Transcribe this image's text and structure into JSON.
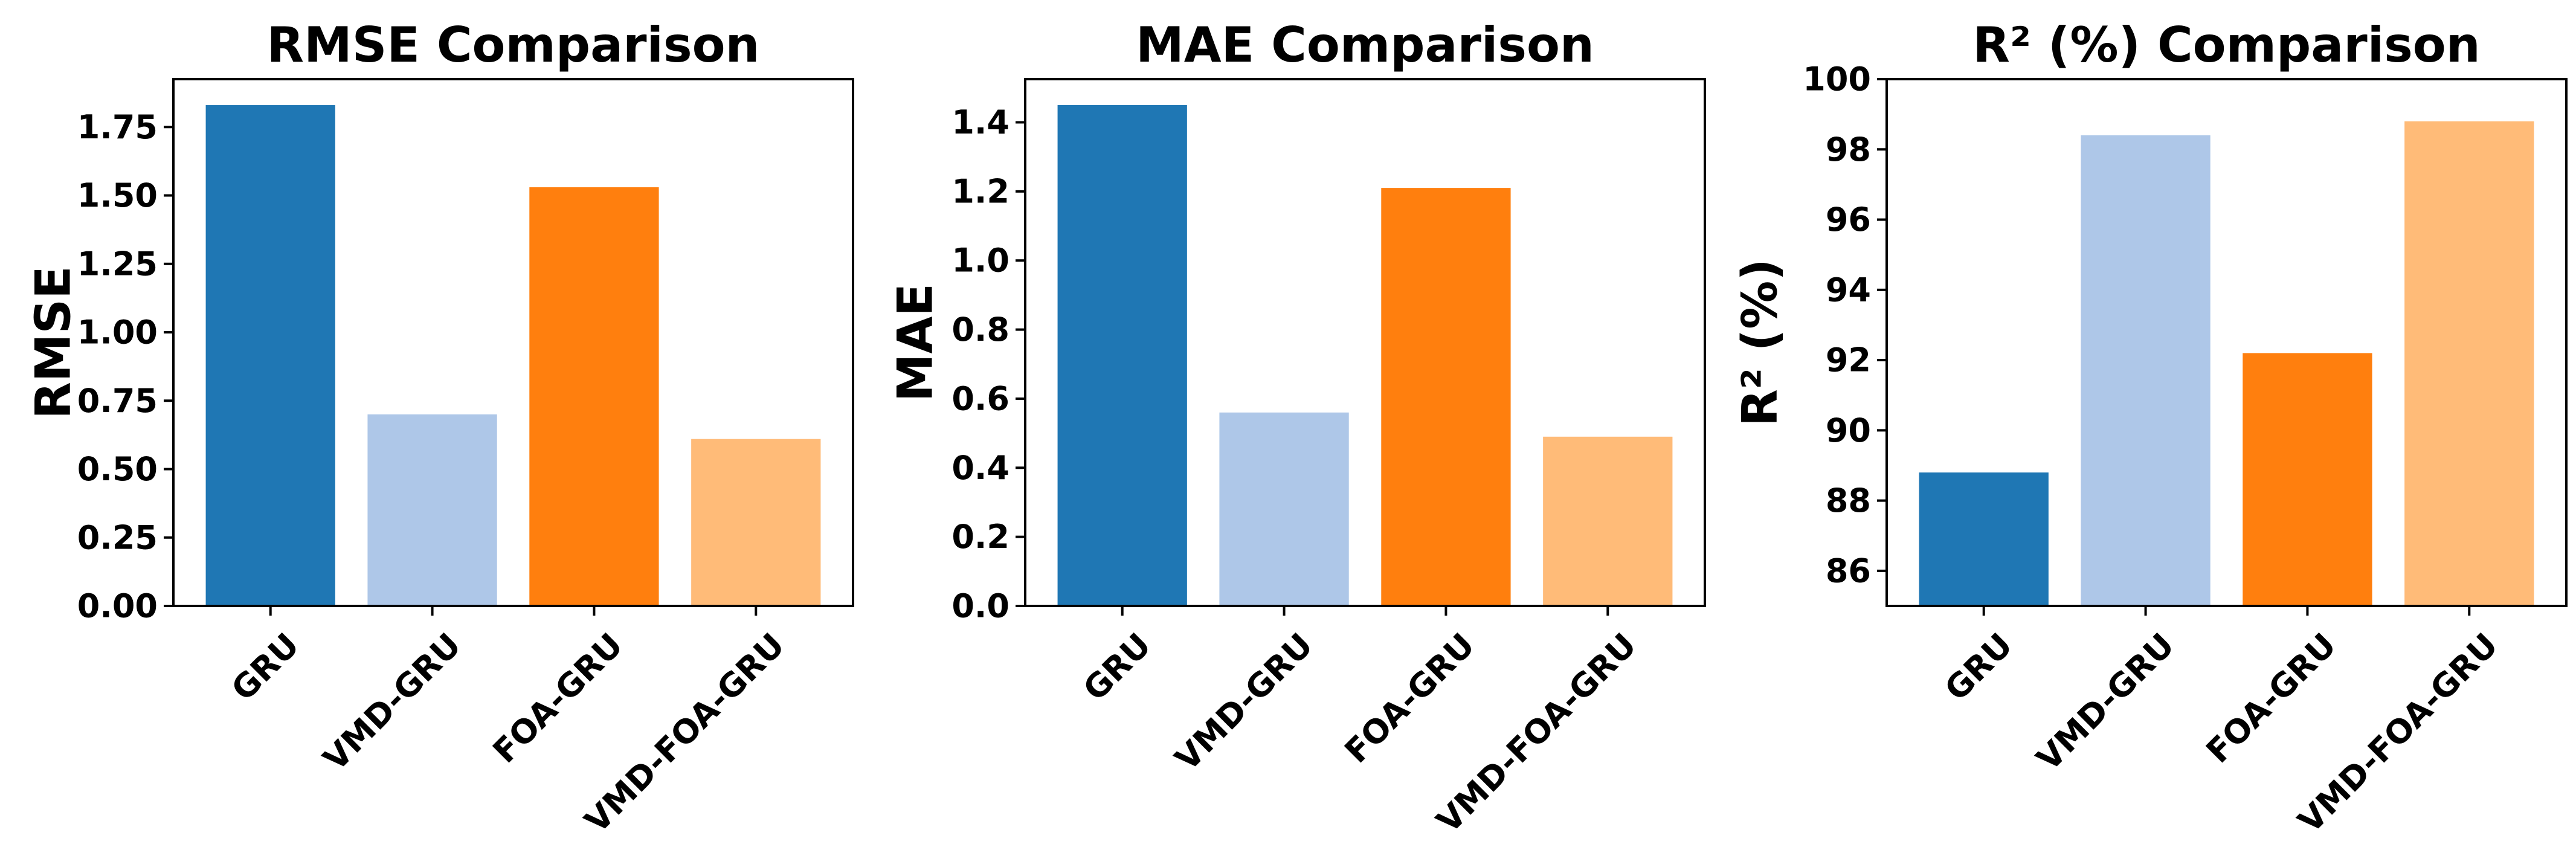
{
  "chart_data": [
    {
      "type": "bar",
      "title": "RMSE Comparison",
      "xlabel": "",
      "ylabel": "RMSE",
      "categories": [
        "GRU",
        "VMD-GRU",
        "FOA-GRU",
        "VMD-FOA-GRU"
      ],
      "values": [
        1.83,
        0.7,
        1.53,
        0.61
      ],
      "colors": [
        "#1f77b4",
        "#aec7e8",
        "#ff7f0e",
        "#ffbb78"
      ],
      "ylim": [
        0,
        1.925
      ],
      "yticks": [
        0,
        0.25,
        0.5,
        0.75,
        1.0,
        1.25,
        1.5,
        1.75
      ],
      "ytick_labels": [
        "0.00",
        "0.25",
        "0.50",
        "0.75",
        "1.00",
        "1.25",
        "1.50",
        "1.75"
      ],
      "grid": false
    },
    {
      "type": "bar",
      "title": "MAE Comparison",
      "xlabel": "",
      "ylabel": "MAE",
      "categories": [
        "GRU",
        "VMD-GRU",
        "FOA-GRU",
        "VMD-FOA-GRU"
      ],
      "values": [
        1.45,
        0.56,
        1.21,
        0.49
      ],
      "colors": [
        "#1f77b4",
        "#aec7e8",
        "#ff7f0e",
        "#ffbb78"
      ],
      "ylim": [
        0,
        1.525
      ],
      "yticks": [
        0,
        0.2,
        0.4,
        0.6,
        0.8,
        1.0,
        1.2,
        1.4
      ],
      "ytick_labels": [
        "0.0",
        "0.2",
        "0.4",
        "0.6",
        "0.8",
        "1.0",
        "1.2",
        "1.4"
      ],
      "grid": false
    },
    {
      "type": "bar",
      "title": "R² (%) Comparison",
      "xlabel": "",
      "ylabel": "R² (%)",
      "categories": [
        "GRU",
        "VMD-GRU",
        "FOA-GRU",
        "VMD-FOA-GRU"
      ],
      "values": [
        88.8,
        98.4,
        92.2,
        98.8
      ],
      "colors": [
        "#1f77b4",
        "#aec7e8",
        "#ff7f0e",
        "#ffbb78"
      ],
      "ylim": [
        85,
        100
      ],
      "yticks": [
        86,
        88,
        90,
        92,
        94,
        96,
        98,
        100
      ],
      "ytick_labels": [
        "86",
        "88",
        "90",
        "92",
        "94",
        "96",
        "98",
        "100"
      ],
      "grid": false
    }
  ]
}
